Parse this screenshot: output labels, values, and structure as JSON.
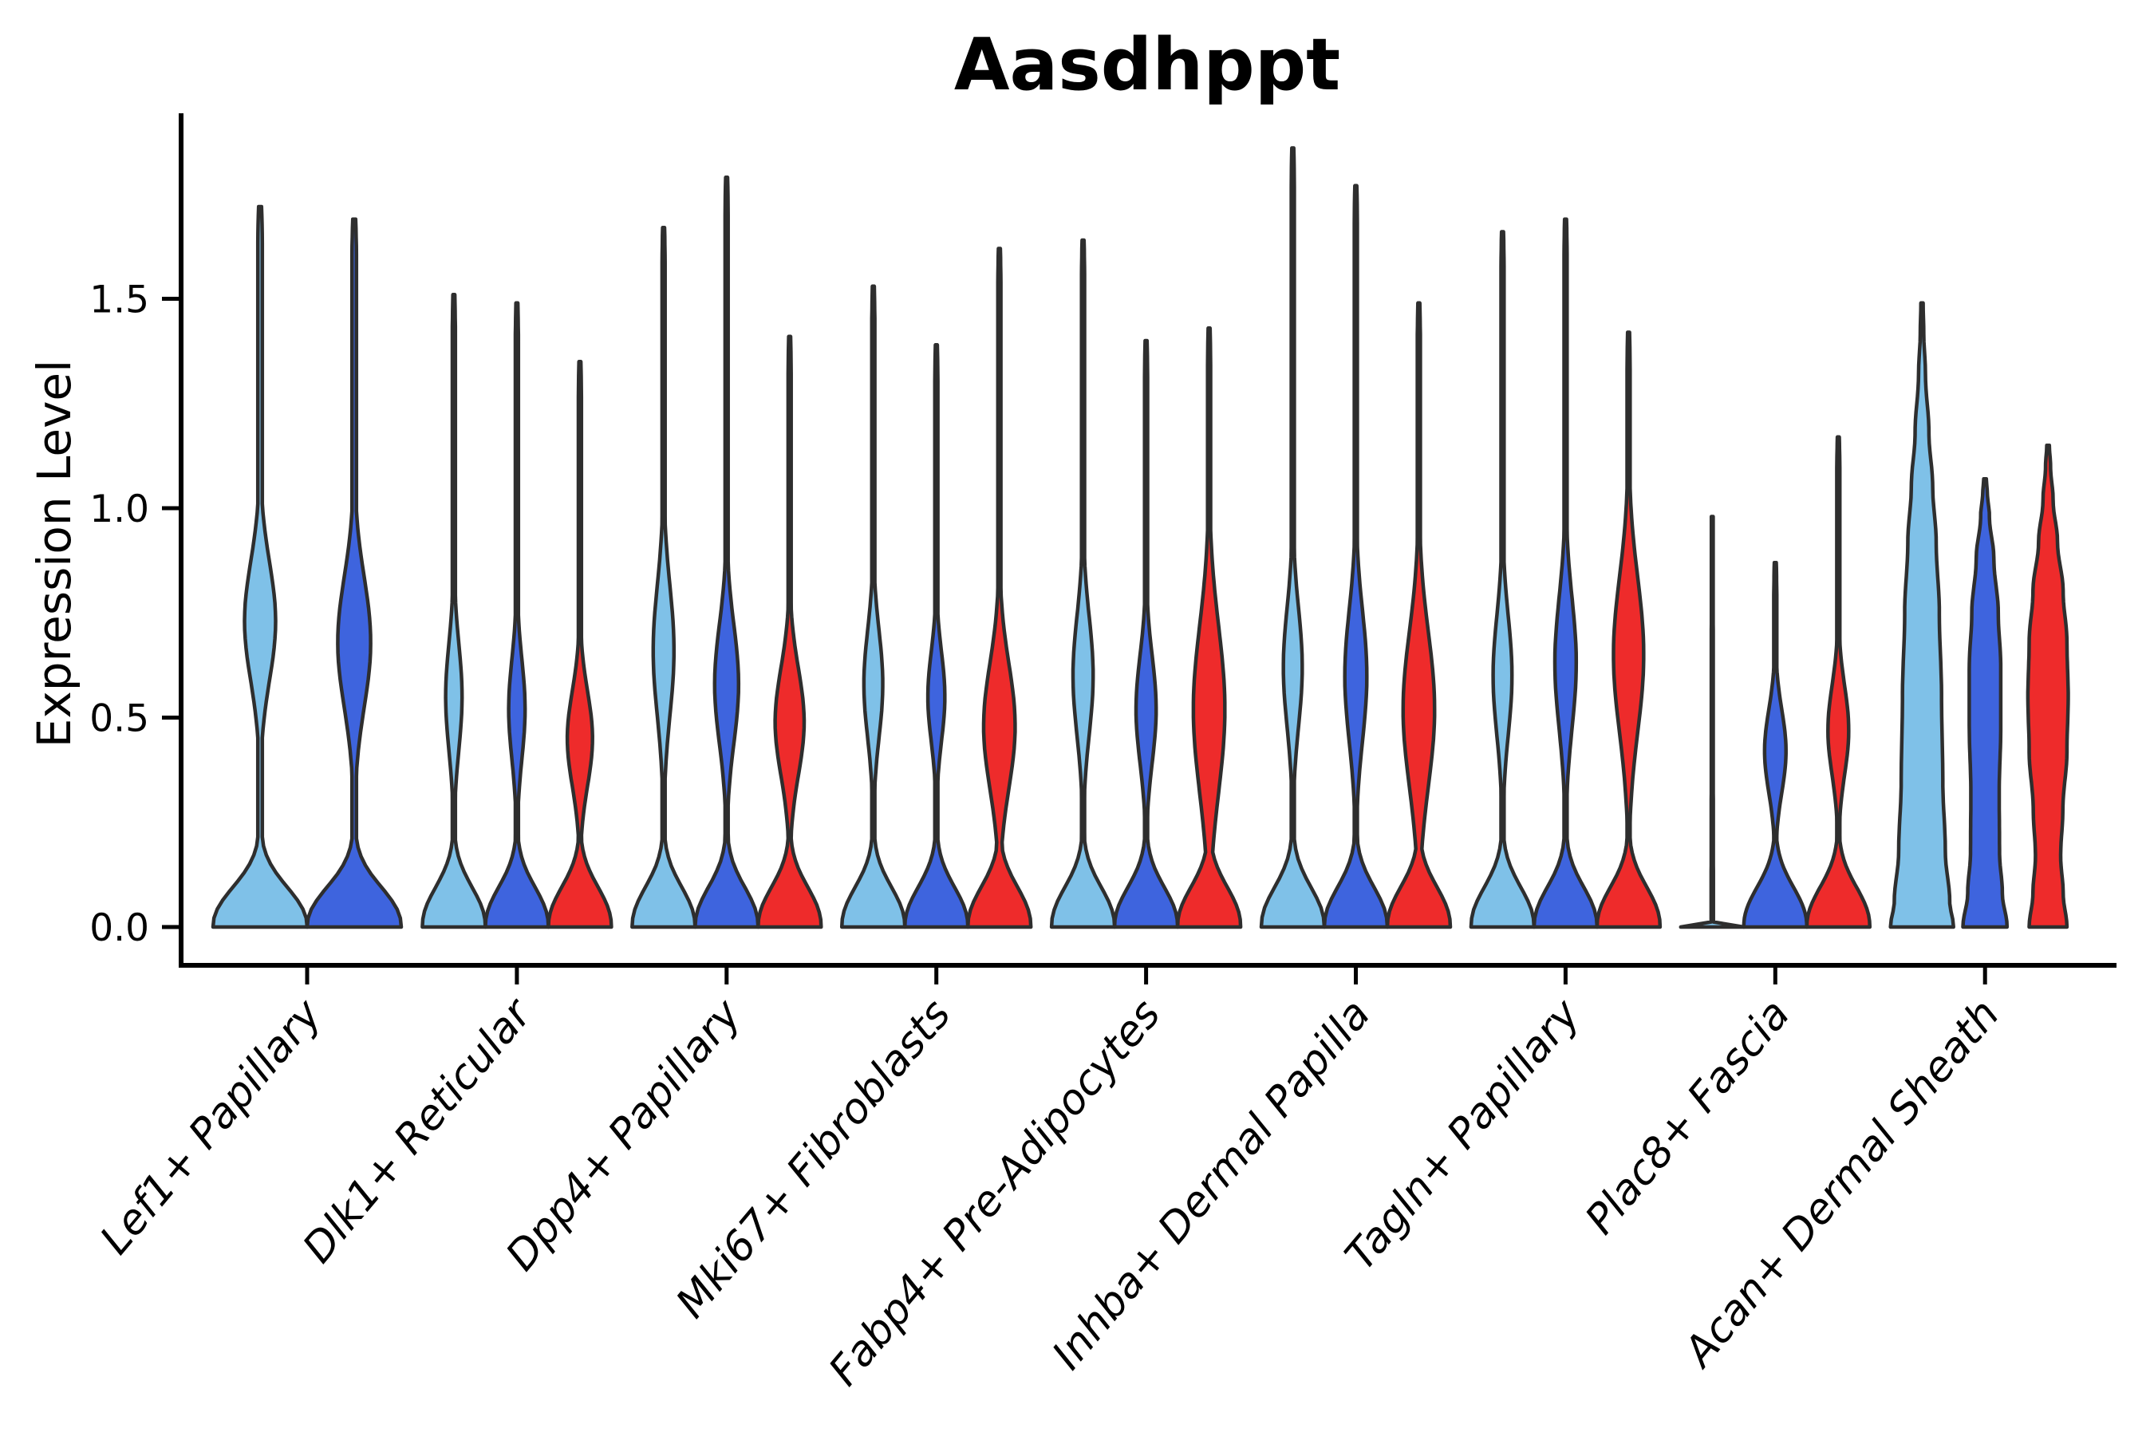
{
  "chart_data": {
    "type": "violin",
    "title": "Aasdhppt",
    "ylabel": "Expression Level",
    "xlabel": "",
    "ylim": [
      0,
      1.94
    ],
    "yticks": [
      0.0,
      0.5,
      1.0,
      1.5
    ],
    "grid": "off",
    "legend": "none",
    "x_tick_rotation_deg": 50,
    "palette": {
      "light_blue": "#7FC1E8",
      "dark_blue": "#3E64DE",
      "red": "#EE2B2B"
    },
    "outline_color": "#2E2E2E",
    "axis_color": "#000000",
    "categories": [
      "Lef1+ Papillary",
      "Dlk1+ Reticular",
      "Dpp4+ Papillary",
      "Mki67+ Fibroblasts",
      "Fabp4+ Pre-Adipocytes",
      "Inhba+ Dermal Papilla",
      "Tagln+ Papillary",
      "Plac8+ Fascia",
      "Acan+ Dermal Sheath"
    ],
    "groups": [
      {
        "category": "Lef1+ Papillary",
        "violins": [
          {
            "hue": "light_blue",
            "max": 1.72,
            "bulge_center": 0.73,
            "bulge_peak": 0.33,
            "bulge_extent": 0.2
          },
          {
            "hue": "dark_blue",
            "max": 1.69,
            "bulge_center": 0.68,
            "bulge_peak": 0.35,
            "bulge_extent": 0.22
          }
        ]
      },
      {
        "category": "Dlk1+ Reticular",
        "violins": [
          {
            "hue": "light_blue",
            "max": 1.51,
            "bulge_center": 0.55,
            "bulge_peak": 0.26,
            "bulge_extent": 0.18
          },
          {
            "hue": "dark_blue",
            "max": 1.49,
            "bulge_center": 0.52,
            "bulge_peak": 0.26,
            "bulge_extent": 0.17
          },
          {
            "hue": "red",
            "max": 1.35,
            "bulge_center": 0.45,
            "bulge_peak": 0.4,
            "bulge_extent": 0.16
          }
        ]
      },
      {
        "category": "Dpp4+ Papillary",
        "violins": [
          {
            "hue": "light_blue",
            "max": 1.67,
            "bulge_center": 0.66,
            "bulge_peak": 0.33,
            "bulge_extent": 0.22
          },
          {
            "hue": "dark_blue",
            "max": 1.79,
            "bulge_center": 0.58,
            "bulge_peak": 0.38,
            "bulge_extent": 0.2
          },
          {
            "hue": "red",
            "max": 1.41,
            "bulge_center": 0.49,
            "bulge_peak": 0.46,
            "bulge_extent": 0.18
          }
        ]
      },
      {
        "category": "Mki67+ Fibroblasts",
        "violins": [
          {
            "hue": "light_blue",
            "max": 1.53,
            "bulge_center": 0.58,
            "bulge_peak": 0.3,
            "bulge_extent": 0.18
          },
          {
            "hue": "dark_blue",
            "max": 1.39,
            "bulge_center": 0.55,
            "bulge_peak": 0.27,
            "bulge_extent": 0.15
          },
          {
            "hue": "red",
            "max": 1.62,
            "bulge_center": 0.48,
            "bulge_peak": 0.5,
            "bulge_extent": 0.21
          }
        ]
      },
      {
        "category": "Fabp4+ Pre-Adipocytes",
        "violins": [
          {
            "hue": "light_blue",
            "max": 1.64,
            "bulge_center": 0.6,
            "bulge_peak": 0.32,
            "bulge_extent": 0.2
          },
          {
            "hue": "dark_blue",
            "max": 1.4,
            "bulge_center": 0.52,
            "bulge_peak": 0.32,
            "bulge_extent": 0.18
          },
          {
            "hue": "red",
            "max": 1.43,
            "bulge_center": 0.52,
            "bulge_peak": 0.5,
            "bulge_extent": 0.28
          }
        ]
      },
      {
        "category": "Inhba+ Dermal Papilla",
        "violins": [
          {
            "hue": "light_blue",
            "max": 1.86,
            "bulge_center": 0.62,
            "bulge_peak": 0.3,
            "bulge_extent": 0.2
          },
          {
            "hue": "dark_blue",
            "max": 1.77,
            "bulge_center": 0.6,
            "bulge_peak": 0.35,
            "bulge_extent": 0.22
          },
          {
            "hue": "red",
            "max": 1.49,
            "bulge_center": 0.52,
            "bulge_peak": 0.5,
            "bulge_extent": 0.26
          }
        ]
      },
      {
        "category": "Tagln+ Papillary",
        "violins": [
          {
            "hue": "light_blue",
            "max": 1.66,
            "bulge_center": 0.6,
            "bulge_peak": 0.3,
            "bulge_extent": 0.2
          },
          {
            "hue": "dark_blue",
            "max": 1.69,
            "bulge_center": 0.63,
            "bulge_peak": 0.34,
            "bulge_extent": 0.22
          },
          {
            "hue": "red",
            "max": 1.42,
            "bulge_center": 0.65,
            "bulge_peak": 0.48,
            "bulge_extent": 0.26
          }
        ]
      },
      {
        "category": "Plac8+ Fascia",
        "violins": [
          {
            "hue": "light_blue",
            "max": 0.98,
            "shape": "line",
            "profile": [
              [
                0,
                1.0
              ],
              [
                0.012,
                0.035
              ],
              [
                0.5,
                0.03
              ],
              [
                0.98,
                0.028
              ]
            ]
          },
          {
            "hue": "dark_blue",
            "max": 0.87,
            "bulge_center": 0.42,
            "bulge_peak": 0.34,
            "bulge_extent": 0.14
          },
          {
            "hue": "red",
            "max": 1.17,
            "bulge_center": 0.47,
            "bulge_peak": 0.33,
            "bulge_extent": 0.15
          }
        ]
      },
      {
        "category": "Acan+ Dermal Sheath",
        "violins": [
          {
            "hue": "light_blue",
            "max": 1.49,
            "shape": "cone",
            "profile": [
              [
                0,
                1.0
              ],
              [
                0.06,
                0.88
              ],
              [
                0.18,
                0.74
              ],
              [
                0.35,
                0.66
              ],
              [
                0.55,
                0.62
              ],
              [
                0.75,
                0.55
              ],
              [
                0.92,
                0.45
              ],
              [
                1.05,
                0.34
              ],
              [
                1.18,
                0.22
              ],
              [
                1.32,
                0.11
              ],
              [
                1.42,
                0.055
              ],
              [
                1.49,
                0.035
              ]
            ]
          },
          {
            "hue": "dark_blue",
            "max": 1.07,
            "shape": "custom",
            "profile": [
              [
                0,
                0.7
              ],
              [
                0.08,
                0.55
              ],
              [
                0.18,
                0.46
              ],
              [
                0.32,
                0.45
              ],
              [
                0.48,
                0.5
              ],
              [
                0.62,
                0.5
              ],
              [
                0.75,
                0.42
              ],
              [
                0.88,
                0.28
              ],
              [
                0.98,
                0.14
              ],
              [
                1.04,
                0.07
              ],
              [
                1.07,
                0.04
              ]
            ]
          },
          {
            "hue": "red",
            "max": 1.15,
            "shape": "custom",
            "profile": [
              [
                0,
                0.6
              ],
              [
                0.08,
                0.48
              ],
              [
                0.17,
                0.4
              ],
              [
                0.28,
                0.47
              ],
              [
                0.42,
                0.6
              ],
              [
                0.55,
                0.64
              ],
              [
                0.68,
                0.6
              ],
              [
                0.8,
                0.48
              ],
              [
                0.92,
                0.3
              ],
              [
                1.02,
                0.16
              ],
              [
                1.1,
                0.08
              ],
              [
                1.15,
                0.04
              ]
            ]
          }
        ]
      }
    ]
  }
}
